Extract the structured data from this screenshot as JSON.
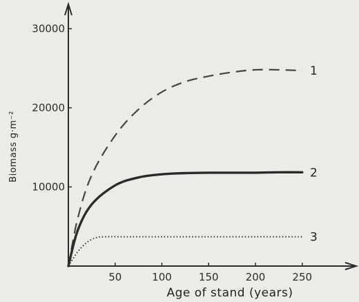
{
  "chart_data": {
    "type": "line",
    "title": "",
    "xlabel": "Age of stand (years)",
    "ylabel": "Biomass  g·m⁻²",
    "xlim": [
      0,
      300
    ],
    "ylim": [
      0,
      32000
    ],
    "x_ticks": [
      50,
      100,
      150,
      200,
      250
    ],
    "y_ticks": [
      10000,
      20000,
      30000
    ],
    "grid": false,
    "legend": "none",
    "series": [
      {
        "name": "1",
        "style": "dashed",
        "color": "#444444",
        "x": [
          0,
          10,
          25,
          50,
          75,
          100,
          125,
          150,
          175,
          200,
          225,
          250
        ],
        "y": [
          0,
          6000,
          11500,
          16500,
          19800,
          22000,
          23300,
          24000,
          24500,
          24800,
          24800,
          24700
        ]
      },
      {
        "name": "2",
        "style": "solid",
        "color": "#2a2a2a",
        "x": [
          0,
          10,
          25,
          50,
          75,
          100,
          125,
          150,
          175,
          200,
          225,
          250
        ],
        "y": [
          0,
          4500,
          7800,
          10200,
          11200,
          11600,
          11750,
          11800,
          11800,
          11800,
          11850,
          11850
        ]
      },
      {
        "name": "3",
        "style": "dotted",
        "color": "#333333",
        "x": [
          0,
          10,
          20,
          30,
          40,
          60,
          100,
          150,
          200,
          250
        ],
        "y": [
          0,
          1800,
          3000,
          3600,
          3700,
          3700,
          3700,
          3700,
          3700,
          3700
        ]
      }
    ]
  }
}
